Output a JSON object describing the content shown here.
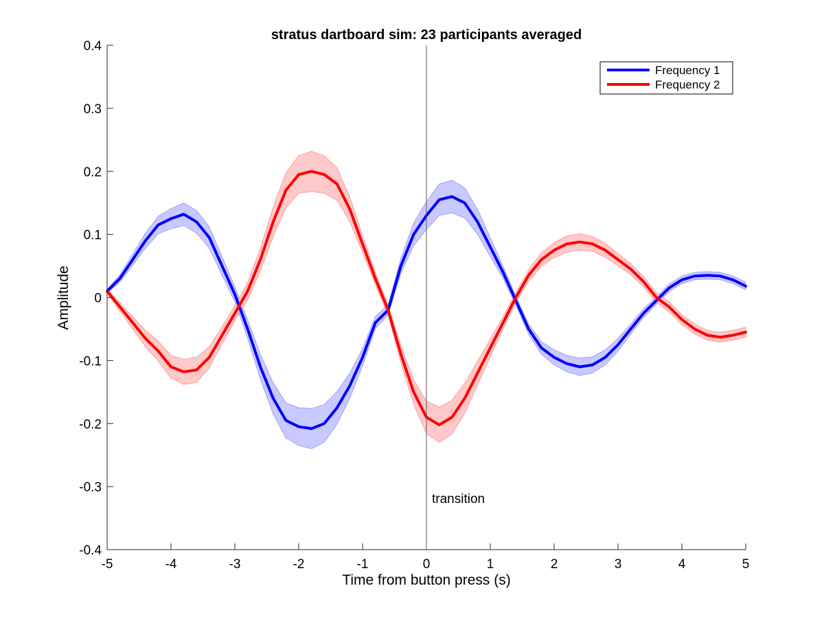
{
  "chart_data": {
    "type": "line",
    "title": "stratus dartboard sim: 23 participants averaged",
    "xlabel": "Time from button press (s)",
    "ylabel": "Amplitude",
    "xlim": [
      -5,
      5
    ],
    "ylim": [
      -0.4,
      0.4
    ],
    "xticks": [
      -5,
      -4,
      -3,
      -2,
      -1,
      0,
      1,
      2,
      3,
      4,
      5
    ],
    "xtick_labels": [
      "-5",
      "-4",
      "-3",
      "-2",
      "-1",
      "0",
      "1",
      "2",
      "3",
      "4",
      "5"
    ],
    "yticks": [
      -0.4,
      -0.3,
      -0.2,
      -0.1,
      0,
      0.1,
      0.2,
      0.3,
      0.4
    ],
    "ytick_labels": [
      "-0.4",
      "-0.3",
      "-0.2",
      "-0.1",
      "0",
      "0.1",
      "0.2",
      "0.3",
      "0.4"
    ],
    "grid": false,
    "legend_position": "top-right",
    "annotation": {
      "text": "transition",
      "x": 0
    },
    "series": [
      {
        "name": "Frequency 1",
        "color": "#0000ff",
        "band_color": "#b7b7ff",
        "x": [
          -5,
          -4.8,
          -4.6,
          -4.4,
          -4.2,
          -4.0,
          -3.8,
          -3.6,
          -3.4,
          -3.2,
          -3.0,
          -2.8,
          -2.6,
          -2.4,
          -2.2,
          -2.0,
          -1.8,
          -1.6,
          -1.4,
          -1.2,
          -1.0,
          -0.8,
          -0.6,
          -0.4,
          -0.2,
          0.0,
          0.2,
          0.4,
          0.6,
          0.8,
          1.0,
          1.2,
          1.4,
          1.6,
          1.8,
          2.0,
          2.2,
          2.4,
          2.6,
          2.8,
          3.0,
          3.2,
          3.4,
          3.6,
          3.8,
          4.0,
          4.2,
          4.4,
          4.6,
          4.8,
          5.0
        ],
        "y": [
          0.01,
          0.03,
          0.06,
          0.09,
          0.115,
          0.125,
          0.132,
          0.12,
          0.095,
          0.05,
          0.005,
          -0.05,
          -0.11,
          -0.16,
          -0.195,
          -0.205,
          -0.208,
          -0.2,
          -0.175,
          -0.14,
          -0.095,
          -0.04,
          -0.02,
          0.05,
          0.1,
          0.13,
          0.155,
          0.16,
          0.15,
          0.12,
          0.08,
          0.04,
          -0.005,
          -0.05,
          -0.08,
          -0.095,
          -0.105,
          -0.11,
          -0.107,
          -0.095,
          -0.075,
          -0.05,
          -0.025,
          -0.005,
          0.015,
          0.028,
          0.034,
          0.035,
          0.034,
          0.028,
          0.018
        ],
        "err": [
          0.003,
          0.006,
          0.009,
          0.012,
          0.014,
          0.016,
          0.018,
          0.018,
          0.017,
          0.015,
          0.012,
          0.015,
          0.02,
          0.025,
          0.028,
          0.03,
          0.032,
          0.03,
          0.026,
          0.02,
          0.014,
          0.01,
          0.008,
          0.012,
          0.018,
          0.022,
          0.025,
          0.026,
          0.024,
          0.02,
          0.015,
          0.01,
          0.007,
          0.008,
          0.01,
          0.012,
          0.013,
          0.014,
          0.013,
          0.012,
          0.01,
          0.008,
          0.007,
          0.006,
          0.006,
          0.006,
          0.006,
          0.006,
          0.006,
          0.006,
          0.006
        ]
      },
      {
        "name": "Frequency 2",
        "color": "#ff0000",
        "band_color": "#ffb7b7",
        "x": [
          -5,
          -4.8,
          -4.6,
          -4.4,
          -4.2,
          -4.0,
          -3.8,
          -3.6,
          -3.4,
          -3.2,
          -3.0,
          -2.8,
          -2.6,
          -2.4,
          -2.2,
          -2.0,
          -1.8,
          -1.6,
          -1.4,
          -1.2,
          -1.0,
          -0.8,
          -0.6,
          -0.4,
          -0.2,
          0.0,
          0.2,
          0.4,
          0.6,
          0.8,
          1.0,
          1.2,
          1.4,
          1.6,
          1.8,
          2.0,
          2.2,
          2.4,
          2.6,
          2.8,
          3.0,
          3.2,
          3.4,
          3.6,
          3.8,
          4.0,
          4.2,
          4.4,
          4.6,
          4.8,
          5.0
        ],
        "y": [
          0.01,
          -0.015,
          -0.04,
          -0.065,
          -0.085,
          -0.11,
          -0.118,
          -0.115,
          -0.095,
          -0.06,
          -0.025,
          0.01,
          0.06,
          0.12,
          0.17,
          0.195,
          0.2,
          0.195,
          0.18,
          0.14,
          0.085,
          0.03,
          -0.02,
          -0.09,
          -0.15,
          -0.19,
          -0.202,
          -0.19,
          -0.16,
          -0.12,
          -0.08,
          -0.04,
          0.0,
          0.035,
          0.06,
          0.075,
          0.085,
          0.088,
          0.085,
          0.075,
          0.06,
          0.045,
          0.025,
          0.0,
          -0.015,
          -0.035,
          -0.05,
          -0.06,
          -0.063,
          -0.06,
          -0.055
        ],
        "err": [
          0.003,
          0.007,
          0.01,
          0.013,
          0.016,
          0.018,
          0.02,
          0.02,
          0.017,
          0.014,
          0.012,
          0.014,
          0.018,
          0.024,
          0.028,
          0.03,
          0.032,
          0.03,
          0.026,
          0.02,
          0.014,
          0.01,
          0.008,
          0.014,
          0.02,
          0.026,
          0.028,
          0.027,
          0.024,
          0.019,
          0.014,
          0.01,
          0.008,
          0.009,
          0.011,
          0.012,
          0.013,
          0.013,
          0.012,
          0.011,
          0.01,
          0.009,
          0.008,
          0.008,
          0.008,
          0.008,
          0.008,
          0.008,
          0.008,
          0.008,
          0.008
        ]
      }
    ]
  }
}
